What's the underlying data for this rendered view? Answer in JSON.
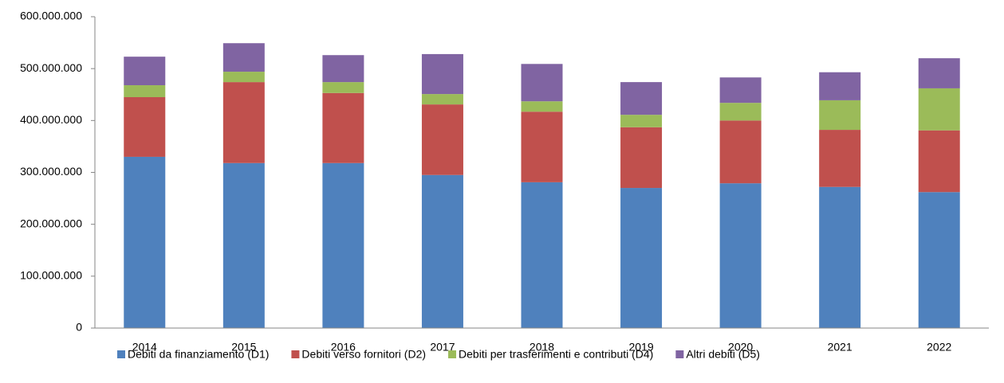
{
  "chart_data": {
    "type": "stacked_bar",
    "categories": [
      "2014",
      "2015",
      "2016",
      "2017",
      "2018",
      "2019",
      "2020",
      "2021",
      "2022"
    ],
    "series": [
      {
        "name": "Debiti da finanziamento (D1)",
        "color": "#4f81bd",
        "values": [
          330000000,
          318000000,
          318000000,
          295000000,
          281000000,
          270000000,
          279000000,
          272000000,
          262000000
        ]
      },
      {
        "name": "Debiti verso fornitori (D2)",
        "color": "#c0504d",
        "values": [
          115000000,
          156000000,
          135000000,
          136000000,
          136000000,
          117000000,
          121000000,
          110000000,
          119000000
        ]
      },
      {
        "name": "Debiti per trasferimenti e contributi (D4)",
        "color": "#9bbb59",
        "values": [
          23000000,
          20000000,
          21000000,
          20000000,
          20000000,
          24000000,
          34000000,
          57000000,
          81000000
        ]
      },
      {
        "name": "Altri debiti (D5)",
        "color": "#8064a2",
        "values": [
          55000000,
          55000000,
          52000000,
          77000000,
          72000000,
          63000000,
          49000000,
          54000000,
          58000000
        ]
      }
    ],
    "ylim": [
      0,
      600000000
    ],
    "yticks": [
      0,
      {
        "value": 100000000,
        "label": "100.000.000"
      },
      {
        "value": 200000000,
        "label": "200.000.000"
      },
      {
        "value": 300000000,
        "label": "300.000.000"
      },
      {
        "value": 400000000,
        "label": "400.000.000"
      },
      {
        "value": 500000000,
        "label": "500.000.000"
      },
      {
        "value": 600000000,
        "label": "600.000.000"
      }
    ],
    "grid": false,
    "legend": "bottom"
  }
}
